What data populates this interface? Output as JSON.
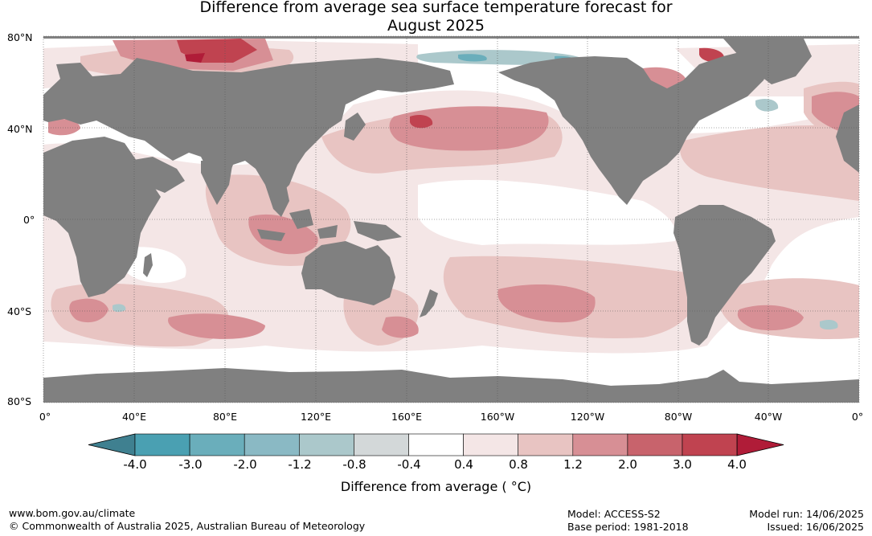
{
  "title": {
    "line1": "Difference from average sea surface temperature forecast for",
    "line2": "August 2025"
  },
  "map": {
    "lat_labels": [
      "80°N",
      "40°N",
      "0°",
      "40°S",
      "80°S"
    ],
    "lon_labels": [
      "0°",
      "40°E",
      "80°E",
      "120°E",
      "160°E",
      "160°W",
      "120°W",
      "80°W",
      "40°W",
      "0°"
    ],
    "colors": {
      "land": "#808080",
      "neutral_ocean": "#ffffff",
      "grid": "#555555"
    }
  },
  "colorbar": {
    "ticks": [
      "-4.0",
      "-3.0",
      "-2.0",
      "-1.2",
      "-0.8",
      "-0.4",
      "0.4",
      "0.8",
      "1.2",
      "2.0",
      "3.0",
      "4.0"
    ],
    "colors": [
      "#3f8090",
      "#4aa0b2",
      "#6aaebb",
      "#8ab9c4",
      "#abc8cb",
      "#d3d8d9",
      "#ffffff",
      "#f4e6e6",
      "#e8c4c2",
      "#d78f95",
      "#c8636c",
      "#c04350",
      "#b01c38"
    ],
    "label": "Difference from average ( °C)"
  },
  "footer": {
    "url": "www.bom.gov.au/climate",
    "copyright": "© Commonwealth of Australia 2025, Australian Bureau of Meteorology",
    "model": "Model: ACCESS-S2",
    "base_period": "Base period: 1981-2018",
    "model_run": "Model run: 14/06/2025",
    "issued": "Issued: 16/06/2025"
  }
}
